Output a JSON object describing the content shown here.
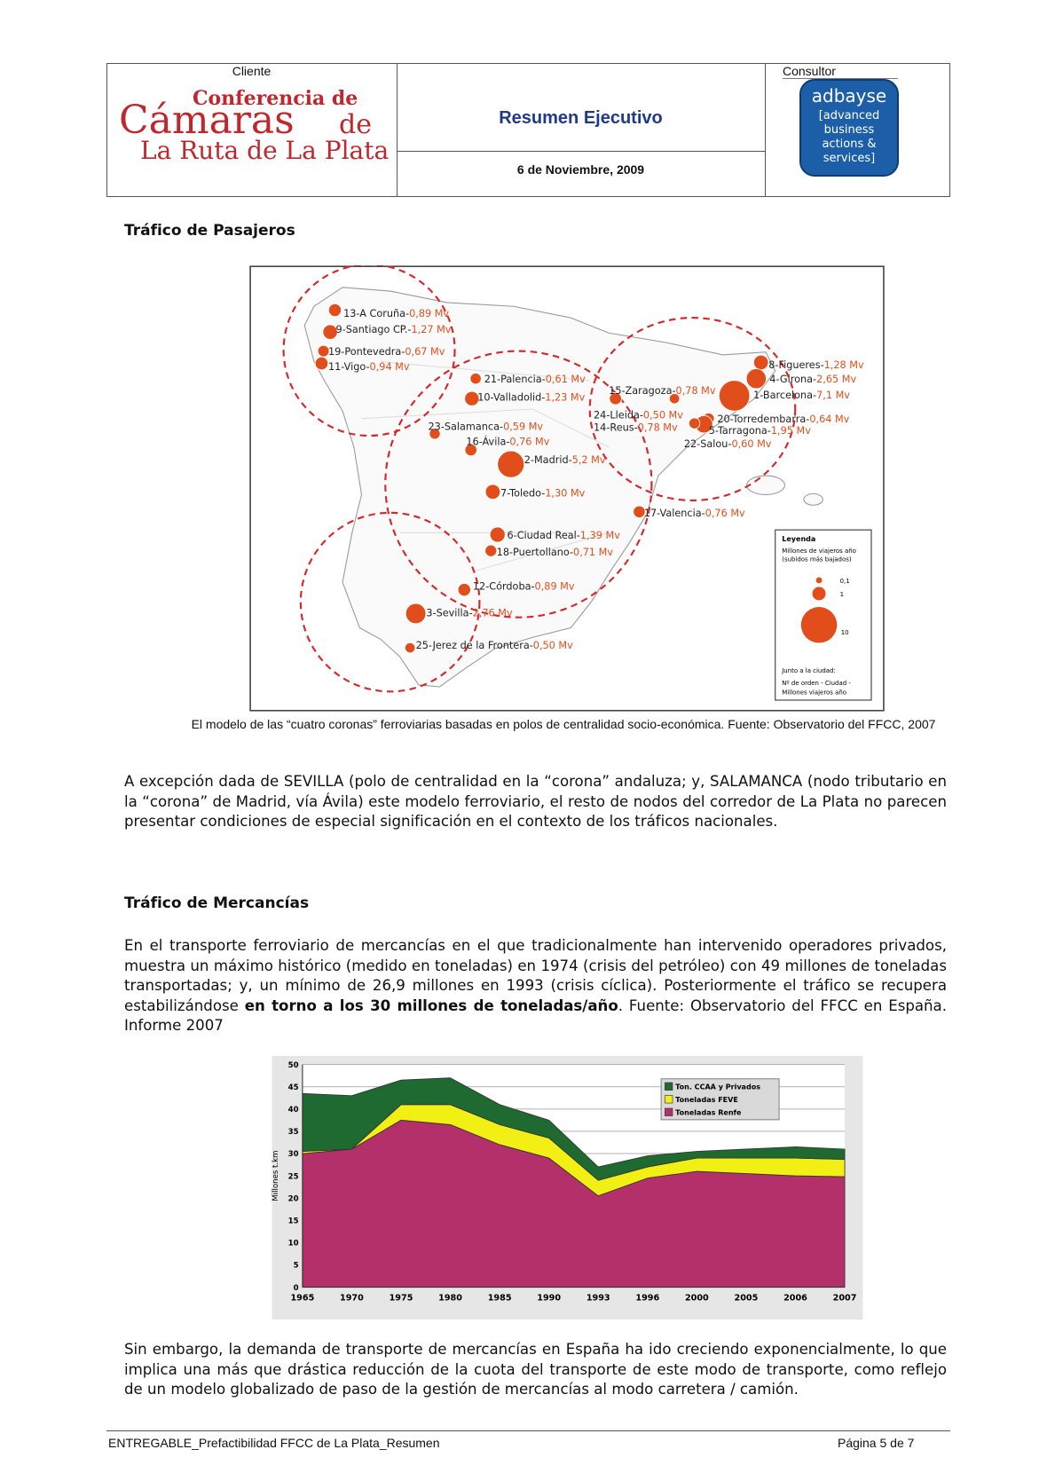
{
  "header": {
    "client_label": "Cliente",
    "client_logo": [
      "Conferencia de",
      "Cámaras",
      "de",
      "La Ruta de La Plata"
    ],
    "title": "Resumen Ejecutivo",
    "date": "6 de Noviembre, 2009",
    "consultant_label": "Consultor",
    "consultant_logo": [
      "adbayse",
      "[advanced",
      "business",
      "actions &",
      "services]"
    ]
  },
  "section1": {
    "title": "Tráfico de Pasajeros",
    "caption": "El modelo de las “cuatro coronas” ferroviarias basadas en polos de centralidad socio-económica. Fuente: Observatorio del FFCC, 2007",
    "paragraph": "A excepción dada de SEVILLA (polo de centralidad en la “corona” andaluza; y, SALAMANCA (nodo tributario en la “corona” de Madrid, vía Ávila) este modelo ferroviario, el resto de nodos del corredor de La Plata no parecen presentar condiciones de especial significación en el contexto de los tráficos nacionales."
  },
  "map": {
    "names": [
      "13-A Coruña-",
      "9-Santiago CP.-",
      "19-Pontevedra-",
      "11-Vigo-",
      "21-Palencia-",
      "10-Valladolid-",
      "23-Salamanca-",
      "16-Ávila-",
      "2-Madrid-",
      "7-Toledo-",
      "6-Ciudad Real-",
      "18-Puertollano-",
      "12-Córdoba-",
      "3-Sevilla-",
      "25-Jerez de la Frontera-",
      "15-Zaragoza-",
      "17-Valencia-",
      "8-Figueres-",
      "4-Girona-",
      "1-Barcelona-",
      "24-Lleida-",
      "14-Reus-",
      "20-Torredembarra-",
      "5-Tarragona-",
      "22-Salou-"
    ],
    "values": [
      0.89,
      1.27,
      0.67,
      0.94,
      0.61,
      1.23,
      0.59,
      0.76,
      5.2,
      1.3,
      1.39,
      0.71,
      0.89,
      2.76,
      0.5,
      0.78,
      0.76,
      1.28,
      2.65,
      7.1,
      0.5,
      0.78,
      0.64,
      1.95,
      0.6
    ],
    "value_labels": [
      "0,89 Mv",
      "1,27 Mv",
      "0,67 Mv",
      "0,94 Mv",
      "0,61 Mv",
      "1,23 Mv",
      "0,59 Mv",
      "0,76 Mv",
      "5,2 Mv",
      "1,30 Mv",
      "1,39 Mv",
      "0,71 Mv",
      "0,89 Mv",
      "2,76 Mv",
      "0,50 Mv",
      "0,78 Mv",
      "0,76 Mv",
      "1,28 Mv",
      "2,65 Mv",
      "7,1 Mv",
      "0,50 Mv",
      "0,78 Mv",
      "0,64 Mv",
      "1,95 Mv",
      "0,60 Mv"
    ],
    "legend": {
      "title": "Leyenda",
      "subtitle": [
        "Millones de viajeros año",
        "(subidos más bajados)"
      ],
      "sizes": [
        0.1,
        1,
        10
      ],
      "size_labels": [
        "0,1",
        "1",
        "10"
      ],
      "note": [
        "Junto a la ciudad:",
        "Nº de orden - Ciudad -",
        "Millones viajeros año"
      ]
    }
  },
  "section2": {
    "title": "Tráfico de Mercancías",
    "paragraph": [
      "En el transporte ferroviario de mercancías en el que tradicionalmente han intervenido operadores privados, muestra un máximo histórico (medido en toneladas) en 1974 (crisis del petróleo) con 49 millones de toneladas transportadas; y, un mínimo de 26,9 millones en 1993 (crisis cíclica). Posteriormente el tráfico se recupera estabilizándose ",
      "en torno a los 30 millones de toneladas/año",
      ". Fuente: Observatorio del FFCC en España. Informe 2007"
    ],
    "closing": "Sin embargo, la demanda de transporte de mercancías en España ha ido creciendo exponencialmente, lo que implica una más que drástica reducción de la cuota del transporte de este modo de transporte, como reflejo de un modelo globalizado de paso de la gestión de mercancías al modo carretera / camión."
  },
  "chart_data": {
    "type": "area",
    "stacked": true,
    "y_label": "Millones t.km",
    "categories": [
      "1965",
      "1970",
      "1975",
      "1980",
      "1985",
      "1990",
      "1993",
      "1996",
      "2000",
      "2005",
      "2006",
      "2007"
    ],
    "series": [
      {
        "name": "Toneladas Renfe",
        "color": "#b3306b",
        "values": [
          30,
          31,
          37.5,
          36.5,
          32,
          29,
          20.5,
          24.5,
          26,
          25.5,
          25,
          24.8
        ]
      },
      {
        "name": "Toneladas FEVE",
        "color": "#f2ef14",
        "values": [
          0.5,
          0,
          3.5,
          4.5,
          4.5,
          4.5,
          3.5,
          2.5,
          3,
          3.5,
          4,
          3.9
        ]
      },
      {
        "name": "Ton. CCAA y Privados",
        "color": "#1f6a31",
        "values": [
          13,
          12,
          5.5,
          6,
          4.5,
          4,
          3,
          2.5,
          1.5,
          2,
          2.5,
          2.3
        ]
      }
    ],
    "ylim": [
      0,
      50
    ],
    "yticks": [
      0,
      5,
      10,
      15,
      20,
      25,
      30,
      35,
      40,
      45,
      50
    ],
    "grid": true
  },
  "footer": {
    "left": "ENTREGABLE_Prefactibilidad FFCC de La Plata_Resumen",
    "right": "Página 5 de 7"
  }
}
